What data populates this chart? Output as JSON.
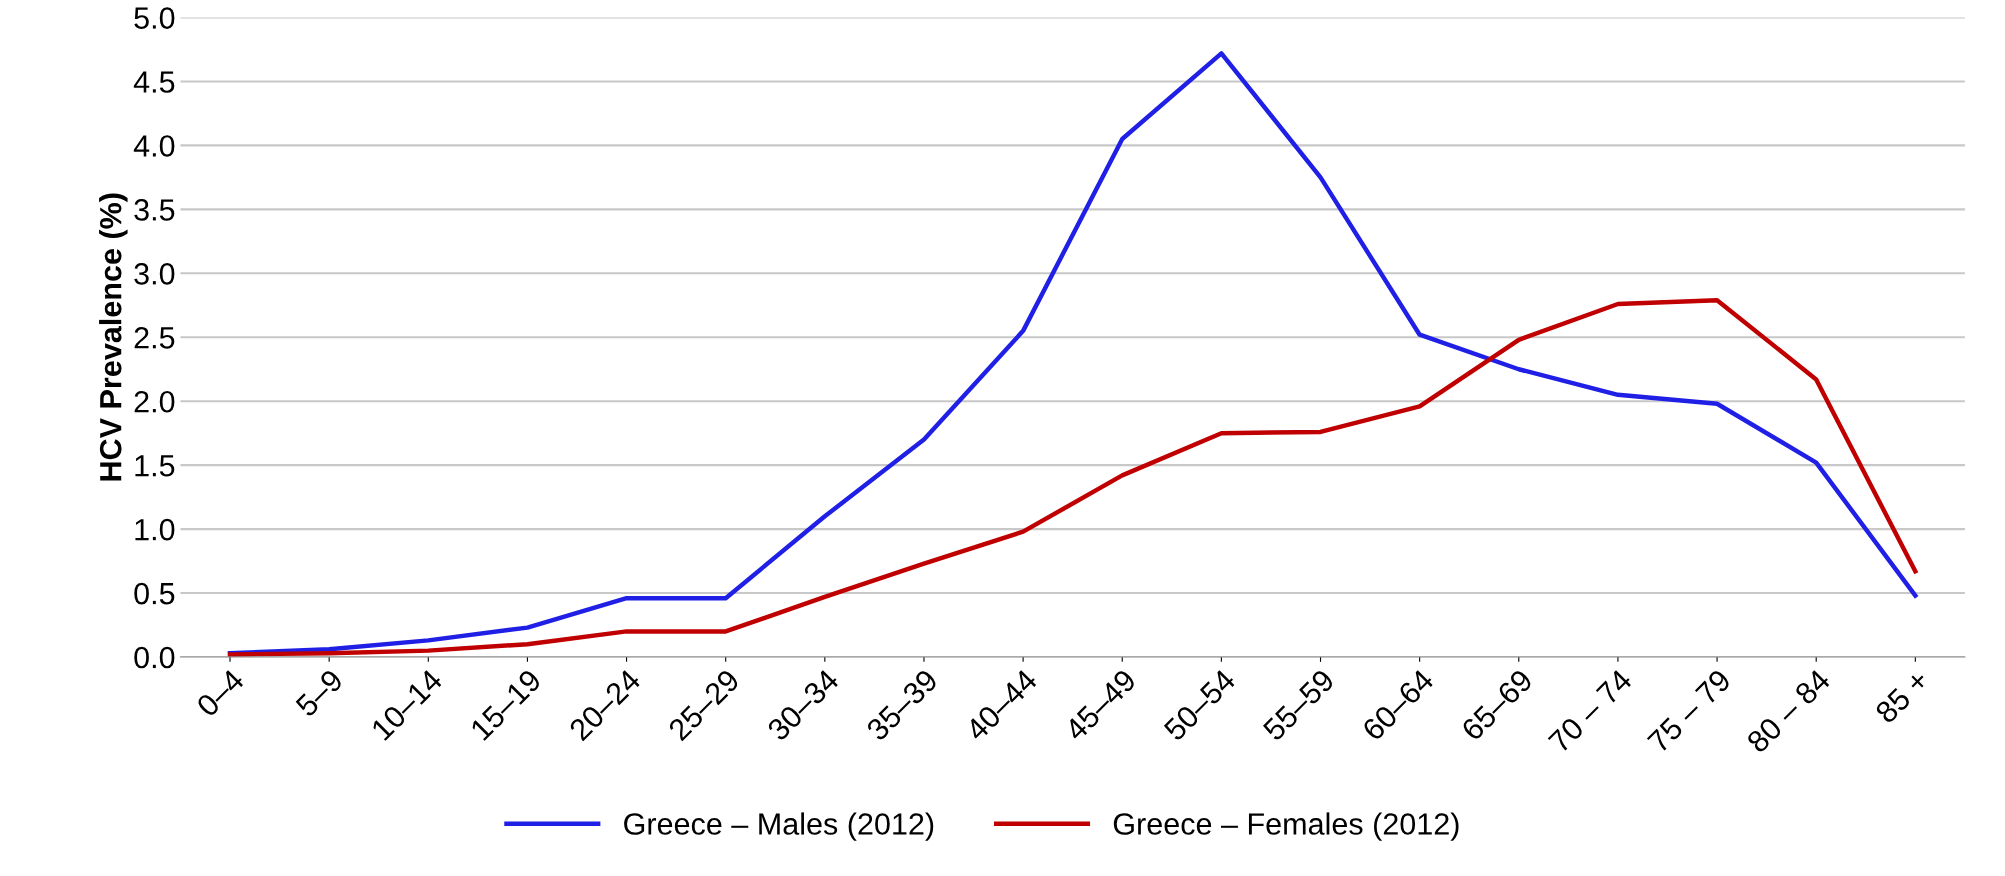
{
  "chart_data": {
    "type": "line",
    "ylabel": "HCV Prevalence (%)",
    "categories": [
      "0–4",
      "5–9",
      "10–14",
      "15–19",
      "20–24",
      "25–29",
      "30–34",
      "35–39",
      "40–44",
      "45–49",
      "50–54",
      "55–59",
      "60–64",
      "65–69",
      "70 – 74",
      "75 – 79",
      "80 – 84",
      "85 +"
    ],
    "series": [
      {
        "name": "Greece – Males (2012)",
        "color": "#1f1fe6",
        "values": [
          0.03,
          0.06,
          0.13,
          0.23,
          0.46,
          0.46,
          1.1,
          1.7,
          2.55,
          4.05,
          4.72,
          3.75,
          2.52,
          2.25,
          2.05,
          1.98,
          1.52,
          0.48
        ]
      },
      {
        "name": "Greece – Females (2012)",
        "color": "#c00000",
        "values": [
          0.02,
          0.03,
          0.05,
          0.1,
          0.2,
          0.2,
          0.47,
          0.73,
          0.98,
          1.42,
          1.75,
          1.76,
          1.96,
          2.48,
          2.76,
          2.79,
          2.17,
          0.67
        ]
      }
    ],
    "ylim": [
      0,
      5
    ],
    "yticks": [
      {
        "value": 0,
        "label": "0.0"
      },
      {
        "value": 0.5,
        "label": "0.5"
      },
      {
        "value": 1,
        "label": "1.0"
      },
      {
        "value": 1.5,
        "label": "1.5"
      },
      {
        "value": 2,
        "label": "2.0"
      },
      {
        "value": 2.5,
        "label": "2.5"
      },
      {
        "value": 3,
        "label": "3.0"
      },
      {
        "value": 3.5,
        "label": "3.5"
      },
      {
        "value": 4,
        "label": "4.0"
      },
      {
        "value": 4.5,
        "label": "4.5"
      },
      {
        "value": 5,
        "label": "5.0"
      }
    ],
    "grid": "y",
    "legend": "bottom",
    "marker": "none",
    "line_style": "solid"
  }
}
